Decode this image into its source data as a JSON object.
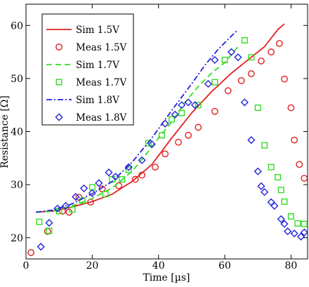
{
  "chart_data": {
    "type": "line",
    "title": "",
    "xlabel": "Time  [µs]",
    "ylabel": "Resistance  [Ω]",
    "xlim": [
      0,
      85
    ],
    "ylim": [
      16,
      64
    ],
    "xticks": [
      0,
      20,
      40,
      60,
      80
    ],
    "yticks": [
      20,
      30,
      40,
      50,
      60
    ],
    "grid": false,
    "legend_position": "top-left",
    "series": [
      {
        "name": "Sim 1.5V",
        "kind": "line",
        "dash": "solid",
        "color": "#e02020",
        "points": [
          [
            3,
            24.8
          ],
          [
            8,
            25.0
          ],
          [
            14,
            25.8
          ],
          [
            20,
            26.8
          ],
          [
            26,
            28.2
          ],
          [
            32,
            30.6
          ],
          [
            38,
            33.8
          ],
          [
            44,
            38.8
          ],
          [
            50,
            43.5
          ],
          [
            56,
            47.5
          ],
          [
            62,
            51.0
          ],
          [
            68,
            54.0
          ],
          [
            72,
            56.0
          ],
          [
            76,
            59.2
          ],
          [
            78,
            60.3
          ]
        ]
      },
      {
        "name": "Meas 1.5V",
        "kind": "scatter",
        "marker": "circle",
        "color": "#e02020",
        "points": [
          [
            1.5,
            17.2
          ],
          [
            6.5,
            21.2
          ],
          [
            11,
            25.0
          ],
          [
            13,
            24.8
          ],
          [
            16,
            27.6
          ],
          [
            19.5,
            26.7
          ],
          [
            23,
            29.2
          ],
          [
            28,
            29.8
          ],
          [
            33,
            31.0
          ],
          [
            35,
            31.8
          ],
          [
            39,
            33.3
          ],
          [
            42,
            35.8
          ],
          [
            46,
            38.0
          ],
          [
            49,
            39.3
          ],
          [
            52,
            40.8
          ],
          [
            57,
            43.8
          ],
          [
            61,
            47.7
          ],
          [
            65,
            49.6
          ],
          [
            68,
            50.9
          ],
          [
            71,
            53.3
          ],
          [
            74,
            55.0
          ],
          [
            76.5,
            56.6
          ],
          [
            78,
            49.9
          ],
          [
            80,
            44.5
          ],
          [
            81,
            38.4
          ],
          [
            82.5,
            33.8
          ],
          [
            84,
            31.2
          ]
        ]
      },
      {
        "name": "Sim 1.7V",
        "kind": "line",
        "dash": "dashed",
        "color": "#33dd22",
        "points": [
          [
            3,
            24.8
          ],
          [
            8,
            25.0
          ],
          [
            14,
            26.0
          ],
          [
            20,
            27.4
          ],
          [
            26,
            29.4
          ],
          [
            32,
            32.5
          ],
          [
            36,
            35.5
          ],
          [
            40,
            38.8
          ],
          [
            44,
            41.8
          ],
          [
            48,
            45.5
          ],
          [
            52,
            48.5
          ],
          [
            56,
            51.0
          ],
          [
            60,
            53.0
          ],
          [
            62,
            54.5
          ],
          [
            64,
            56.0
          ]
        ]
      },
      {
        "name": "Meas 1.7V",
        "kind": "scatter",
        "marker": "square",
        "color": "#33dd22",
        "points": [
          [
            4,
            23.0
          ],
          [
            7,
            21.3
          ],
          [
            10,
            25.0
          ],
          [
            14,
            25.3
          ],
          [
            17,
            27.0
          ],
          [
            20,
            29.5
          ],
          [
            24,
            28.2
          ],
          [
            26,
            31.0
          ],
          [
            29,
            31.0
          ],
          [
            31,
            32.8
          ],
          [
            37,
            37.8
          ],
          [
            41,
            39.3
          ],
          [
            44,
            42.3
          ],
          [
            47,
            43.5
          ],
          [
            52,
            45.0
          ],
          [
            57,
            49.3
          ],
          [
            60,
            53.5
          ],
          [
            66,
            57.2
          ],
          [
            68,
            54.0
          ],
          [
            70,
            44.5
          ],
          [
            72,
            37.4
          ],
          [
            74,
            33.3
          ],
          [
            76,
            31.4
          ],
          [
            77,
            29.0
          ],
          [
            78,
            26.8
          ],
          [
            80,
            24.0
          ],
          [
            82,
            22.7
          ],
          [
            84,
            22.6
          ]
        ]
      },
      {
        "name": "Sim 1.8V",
        "kind": "line",
        "dash": "dashdot",
        "color": "#2222dd",
        "points": [
          [
            3,
            24.8
          ],
          [
            8,
            25.2
          ],
          [
            14,
            26.4
          ],
          [
            20,
            28.3
          ],
          [
            26,
            30.6
          ],
          [
            32,
            34.2
          ],
          [
            38,
            38.8
          ],
          [
            44,
            44.0
          ],
          [
            50,
            49.0
          ],
          [
            54,
            52.5
          ],
          [
            58,
            55.5
          ],
          [
            62,
            58.0
          ],
          [
            64,
            59.2
          ]
        ]
      },
      {
        "name": "Meas 1.8V",
        "kind": "scatter",
        "marker": "diamond",
        "color": "#2222dd",
        "points": [
          [
            4.5,
            18.3
          ],
          [
            7,
            22.8
          ],
          [
            9.5,
            25.5
          ],
          [
            12,
            26.0
          ],
          [
            15,
            27.7
          ],
          [
            17.5,
            29.3
          ],
          [
            20,
            28.4
          ],
          [
            22,
            30.3
          ],
          [
            25,
            32.3
          ],
          [
            27,
            31.5
          ],
          [
            31,
            33.3
          ],
          [
            35,
            34.6
          ],
          [
            38,
            37.6
          ],
          [
            42,
            41.5
          ],
          [
            45,
            43.2
          ],
          [
            47,
            45.0
          ],
          [
            49,
            45.5
          ],
          [
            51,
            45.0
          ],
          [
            55,
            49.0
          ],
          [
            57,
            53.5
          ],
          [
            62,
            55.0
          ],
          [
            64,
            54.0
          ],
          [
            66,
            45.5
          ],
          [
            68,
            38.4
          ],
          [
            70,
            32.5
          ],
          [
            71,
            29.7
          ],
          [
            72,
            28.6
          ],
          [
            74,
            26.7
          ],
          [
            75,
            26.0
          ],
          [
            77,
            23.5
          ],
          [
            78,
            22.6
          ],
          [
            79,
            21.2
          ],
          [
            81,
            20.8
          ],
          [
            83,
            20.2
          ],
          [
            84,
            21.0
          ]
        ]
      }
    ]
  }
}
